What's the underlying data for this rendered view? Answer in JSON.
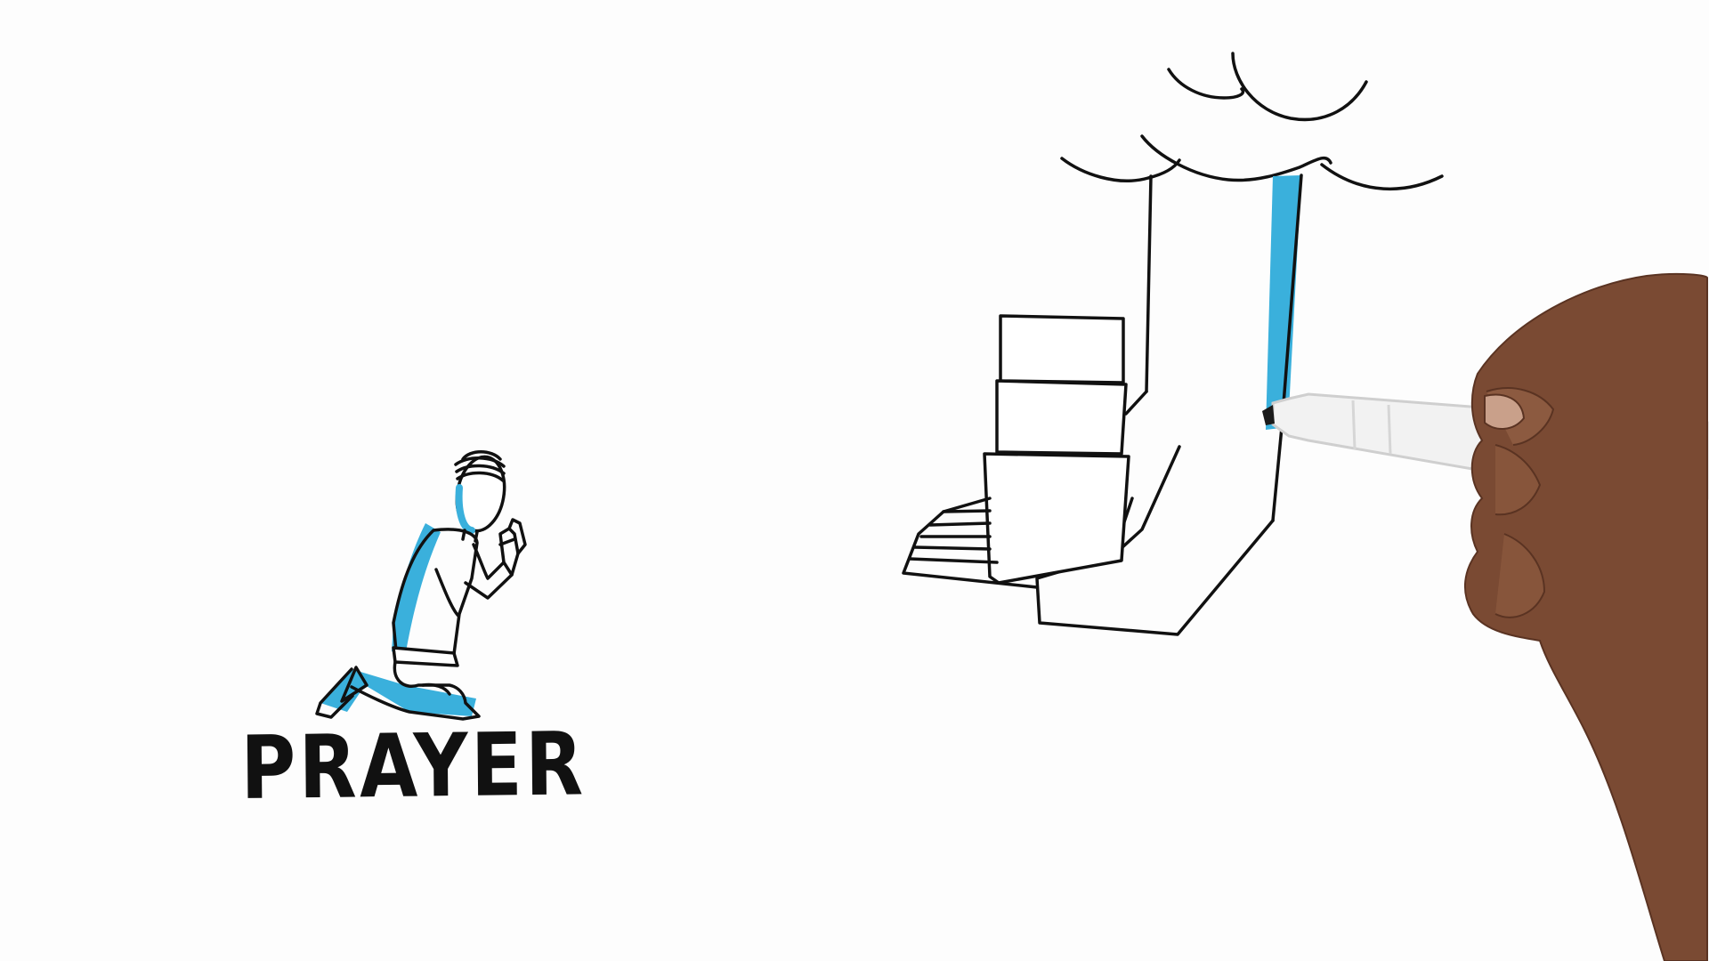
{
  "scene": {
    "caption": "PRAYER",
    "colors": {
      "ink": "#111111",
      "accent": "#3ab0dc",
      "paper": "#fdfdfd",
      "skin": "#7a4a33",
      "marker_body": "#f2f2f2"
    },
    "illustrations": [
      "kneeling-person-praying",
      "cloud",
      "hand-from-heaven-holding-stacked-blocks",
      "hand-holding-marker"
    ]
  }
}
